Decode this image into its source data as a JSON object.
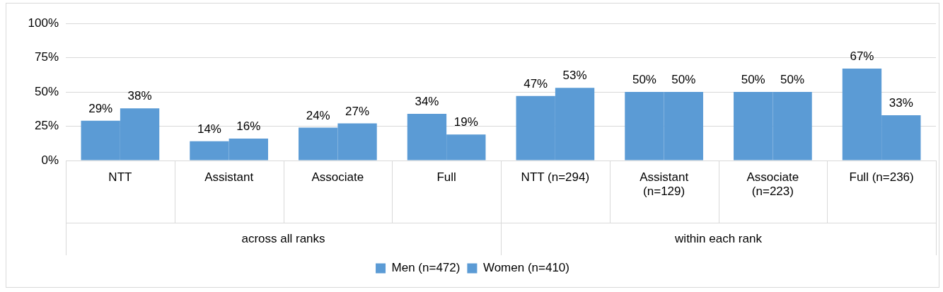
{
  "chart_data": {
    "type": "bar",
    "categories": [
      "NTT",
      "Assistant",
      "Associate",
      "Full",
      "NTT (n=294)",
      "Assistant\n(n=129)",
      "Associate\n(n=223)",
      "Full (n=236)"
    ],
    "series": [
      {
        "name": "Men (n=472)",
        "color": "#5b9bd5",
        "values": [
          29,
          14,
          24,
          34,
          47,
          50,
          50,
          67
        ],
        "value_labels": [
          "29%",
          "14%",
          "24%",
          "34%",
          "47%",
          "50%",
          "50%",
          "67%"
        ]
      },
      {
        "name": "Women (n=410)",
        "color": "#5b9bd5",
        "values": [
          38,
          16,
          27,
          19,
          53,
          50,
          50,
          33
        ],
        "value_labels": [
          "38%",
          "16%",
          "27%",
          "19%",
          "53%",
          "50%",
          "50%",
          "33%"
        ]
      }
    ],
    "annotations": [
      "across all ranks",
      "within each rank"
    ],
    "ylim": [
      0,
      100
    ],
    "yticks": [
      {
        "value": 0,
        "label": "0%"
      },
      {
        "value": 25,
        "label": "25%"
      },
      {
        "value": 50,
        "label": "50%"
      },
      {
        "value": 75,
        "label": "75%"
      },
      {
        "value": 100,
        "label": "100%"
      }
    ],
    "grid": "y",
    "legend": "bottom"
  }
}
